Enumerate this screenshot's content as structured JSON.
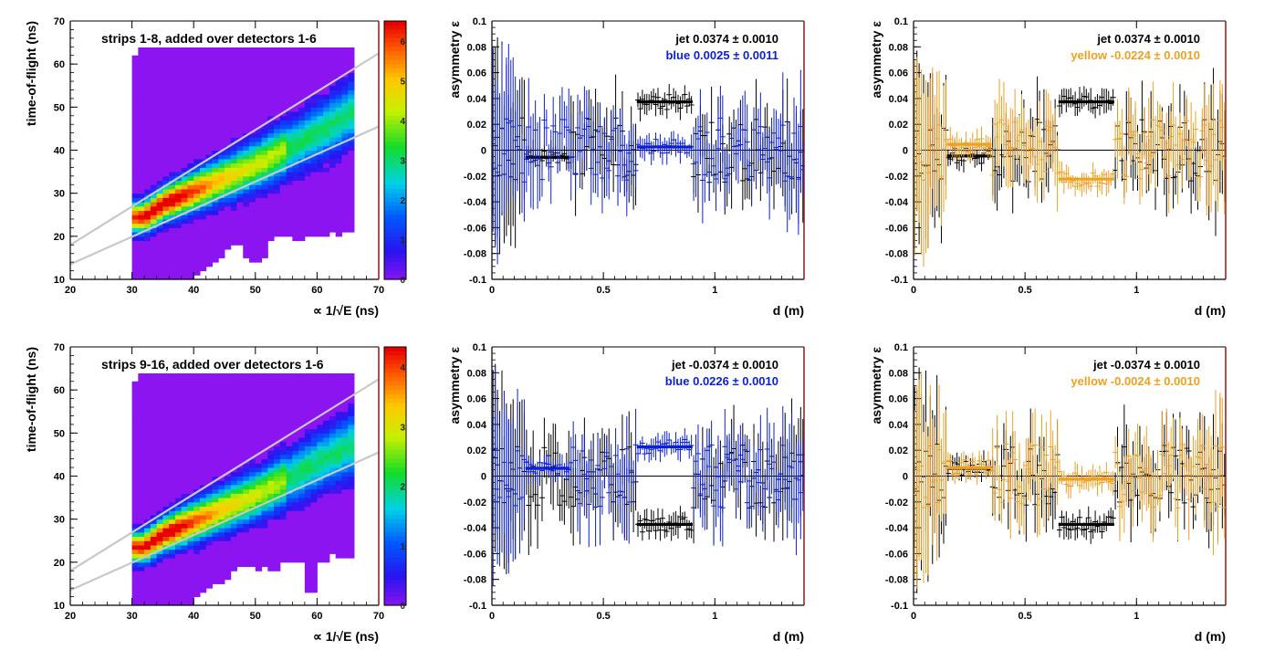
{
  "chart_data": [
    {
      "type": "heatmap",
      "panel": "top-left",
      "title": "strips 1-8, added over detectors 1-6",
      "xlabel": "∝ 1/√E (ns)",
      "ylabel": "time-of-flight (ns)",
      "xlim": [
        20,
        70
      ],
      "ylim": [
        10,
        70
      ],
      "xticks": [
        "20",
        "30",
        "40",
        "50",
        "60",
        "70"
      ],
      "yticks": [
        "10",
        "20",
        "30",
        "40",
        "50",
        "60",
        "70"
      ],
      "colorbar": {
        "palette": "rainbow",
        "tick_labels": [
          "6",
          "5",
          "4",
          "3",
          "2",
          "1",
          "0"
        ]
      },
      "band": {
        "ridge": [
          [
            32,
            24.5
          ],
          [
            35,
            27.5
          ],
          [
            40,
            30.5
          ],
          [
            50,
            36.5
          ],
          [
            60,
            44
          ],
          [
            66,
            49
          ]
        ]
      },
      "cut_lines": [
        {
          "from": [
            20,
            18
          ],
          "to": [
            70,
            62.5
          ]
        },
        {
          "from": [
            20,
            13.5
          ],
          "to": [
            70,
            45.5
          ]
        }
      ]
    },
    {
      "type": "scatter",
      "panel": "top-middle",
      "xlabel": "d (m)",
      "ylabel": "asymmetry ε",
      "xlim": [
        0,
        1.4
      ],
      "ylim": [
        -0.1,
        0.1
      ],
      "xticks": [
        "0",
        "0.5",
        "1"
      ],
      "yticks": [
        "0.1",
        "0.08",
        "0.06",
        "0.04",
        "0.02",
        "0",
        "-0.02",
        "-0.04",
        "-0.06",
        "-0.08",
        "-0.1"
      ],
      "zero_line": true,
      "legend": [
        {
          "label": "jet",
          "value": "0.0374 ± 0.0010",
          "color": "#000000"
        },
        {
          "label": "blue",
          "value": "0.0025 ± 0.0011",
          "color": "#0a1fd6"
        }
      ],
      "series": [
        {
          "name": "jet",
          "color": "#000000",
          "mean": 0.0374,
          "error": 0.001,
          "x_range": [
            0.0,
            1.4
          ],
          "bands": [
            {
              "x": [
                0.15,
                0.35
              ],
              "value": -0.0055
            },
            {
              "x": [
                0.65,
                0.9
              ],
              "value": 0.0374
            }
          ]
        },
        {
          "name": "blue",
          "color": "#0a1fd6",
          "mean": 0.0025,
          "error": 0.0011,
          "x_range": [
            0.0,
            1.4
          ],
          "bands": [
            {
              "x": [
                0.65,
                0.9
              ],
              "value": 0.0025
            }
          ]
        }
      ]
    },
    {
      "type": "scatter",
      "panel": "top-right",
      "xlabel": "d (m)",
      "ylabel": "asymmetry ε",
      "xlim": [
        0,
        1.4
      ],
      "ylim": [
        -0.1,
        0.1
      ],
      "xticks": [
        "0",
        "0.5",
        "1"
      ],
      "yticks": [
        "0.1",
        "0.08",
        "0.06",
        "0.04",
        "0.02",
        "0",
        "-0.02",
        "-0.04",
        "-0.06",
        "-0.08",
        "-0.1"
      ],
      "zero_line": true,
      "legend": [
        {
          "label": "jet",
          "value": "0.0374 ± 0.0010",
          "color": "#000000"
        },
        {
          "label": "yellow",
          "value": "-0.0224 ± 0.0010",
          "color": "#f0a020"
        }
      ],
      "series": [
        {
          "name": "jet",
          "color": "#000000",
          "mean": 0.0374,
          "error": 0.001,
          "x_range": [
            0.0,
            1.4
          ],
          "bands": [
            {
              "x": [
                0.15,
                0.35
              ],
              "value": -0.0045
            },
            {
              "x": [
                0.65,
                0.9
              ],
              "value": 0.0374
            }
          ]
        },
        {
          "name": "yellow",
          "color": "#f0a020",
          "mean": -0.0224,
          "error": 0.001,
          "x_range": [
            0.0,
            1.4
          ],
          "bands": [
            {
              "x": [
                0.15,
                0.35
              ],
              "value": 0.0045
            },
            {
              "x": [
                0.65,
                0.9
              ],
              "value": -0.0224
            }
          ]
        }
      ]
    },
    {
      "type": "heatmap",
      "panel": "bottom-left",
      "title": "strips 9-16, added over detectors 1-6",
      "xlabel": "∝ 1/√E (ns)",
      "ylabel": "time-of-flight (ns)",
      "xlim": [
        20,
        70
      ],
      "ylim": [
        10,
        70
      ],
      "xticks": [
        "20",
        "30",
        "40",
        "50",
        "60",
        "70"
      ],
      "yticks": [
        "10",
        "20",
        "30",
        "40",
        "50",
        "60",
        "70"
      ],
      "colorbar": {
        "palette": "rainbow",
        "tick_labels": [
          "4",
          "3",
          "2",
          "1",
          "0"
        ]
      },
      "band": {
        "ridge": [
          [
            32,
            23.5
          ],
          [
            35,
            26.5
          ],
          [
            40,
            29.5
          ],
          [
            50,
            35.5
          ],
          [
            60,
            43
          ],
          [
            66,
            47.5
          ]
        ]
      },
      "cut_lines": [
        {
          "from": [
            20,
            18
          ],
          "to": [
            70,
            62.5
          ]
        },
        {
          "from": [
            20,
            13.5
          ],
          "to": [
            70,
            45.5
          ]
        }
      ]
    },
    {
      "type": "scatter",
      "panel": "bottom-middle",
      "xlabel": "d (m)",
      "ylabel": "asymmetry ε",
      "xlim": [
        0,
        1.4
      ],
      "ylim": [
        -0.1,
        0.1
      ],
      "xticks": [
        "0",
        "0.5",
        "1"
      ],
      "yticks": [
        "0.1",
        "0.08",
        "0.06",
        "0.04",
        "0.02",
        "0",
        "-0.02",
        "-0.04",
        "-0.06",
        "-0.08",
        "-0.1"
      ],
      "zero_line": true,
      "legend": [
        {
          "label": "jet",
          "value": "-0.0374 ± 0.0010",
          "color": "#000000"
        },
        {
          "label": "blue",
          "value": "0.0226 ± 0.0010",
          "color": "#0a1fd6"
        }
      ],
      "series": [
        {
          "name": "jet",
          "color": "#000000",
          "mean": -0.0374,
          "error": 0.001,
          "x_range": [
            0.0,
            1.4
          ],
          "bands": [
            {
              "x": [
                0.65,
                0.9
              ],
              "value": -0.0374
            }
          ]
        },
        {
          "name": "blue",
          "color": "#0a1fd6",
          "mean": 0.0226,
          "error": 0.001,
          "x_range": [
            0.0,
            1.4
          ],
          "bands": [
            {
              "x": [
                0.15,
                0.35
              ],
              "value": 0.006
            },
            {
              "x": [
                0.65,
                0.9
              ],
              "value": 0.0226
            }
          ]
        }
      ]
    },
    {
      "type": "scatter",
      "panel": "bottom-right",
      "xlabel": "d (m)",
      "ylabel": "asymmetry ε",
      "xlim": [
        0,
        1.4
      ],
      "ylim": [
        -0.1,
        0.1
      ],
      "xticks": [
        "0",
        "0.5",
        "1"
      ],
      "yticks": [
        "0.1",
        "0.08",
        "0.06",
        "0.04",
        "0.02",
        "0",
        "-0.02",
        "-0.04",
        "-0.06",
        "-0.08",
        "-0.1"
      ],
      "zero_line": true,
      "legend": [
        {
          "label": "jet",
          "value": "-0.0374 ± 0.0010",
          "color": "#000000"
        },
        {
          "label": "yellow",
          "value": "-0.0024 ± 0.0010",
          "color": "#f0a020"
        }
      ],
      "series": [
        {
          "name": "jet",
          "color": "#000000",
          "mean": -0.0374,
          "error": 0.001,
          "x_range": [
            0.0,
            1.4
          ],
          "bands": [
            {
              "x": [
                0.15,
                0.35
              ],
              "value": 0.006
            },
            {
              "x": [
                0.65,
                0.9
              ],
              "value": -0.0374
            }
          ]
        },
        {
          "name": "yellow",
          "color": "#f0a020",
          "mean": -0.0024,
          "error": 0.001,
          "x_range": [
            0.0,
            1.4
          ],
          "bands": [
            {
              "x": [
                0.15,
                0.35
              ],
              "value": 0.0065
            },
            {
              "x": [
                0.65,
                0.9
              ],
              "value": -0.0024
            }
          ]
        }
      ]
    }
  ]
}
